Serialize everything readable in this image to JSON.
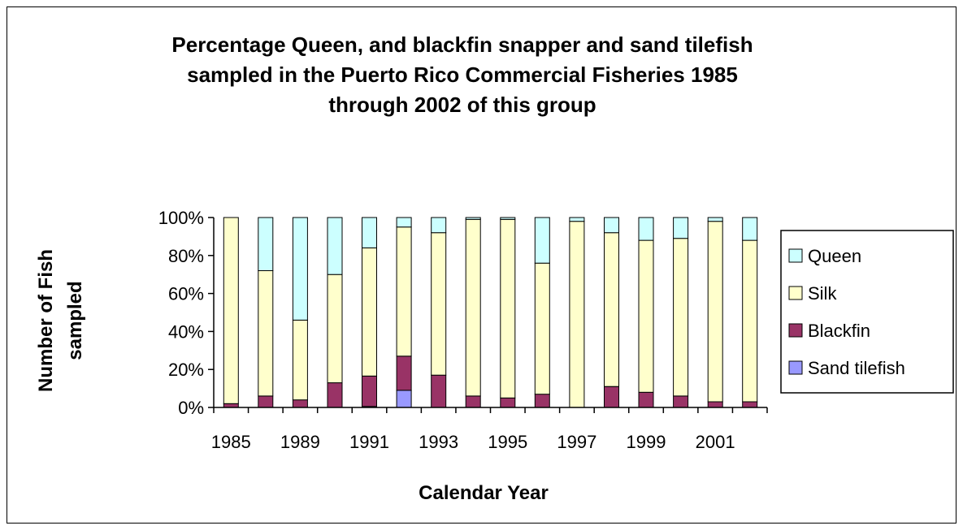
{
  "chart_data": {
    "type": "bar",
    "stacked": true,
    "title_lines": [
      "Percentage Queen, and blackfin snapper and sand tilefish",
      "sampled in the Puerto Rico Commercial Fisheries 1985",
      "through 2002 of this group"
    ],
    "xlabel": "Calendar Year",
    "ylabel_lines": [
      "Number of Fish",
      "sampled"
    ],
    "ylim": [
      0,
      100
    ],
    "yticks": [
      "0%",
      "20%",
      "40%",
      "60%",
      "80%",
      "100%"
    ],
    "ytick_values": [
      0,
      20,
      40,
      60,
      80,
      100
    ],
    "categories": [
      "1985",
      "1986",
      "1989",
      "1990",
      "1991",
      "1992",
      "1993",
      "1994",
      "1995",
      "1996",
      "1997",
      "1998",
      "1999",
      "2000",
      "2001",
      "2002"
    ],
    "xtick_labels": [
      "1985",
      "",
      "1989",
      "",
      "1991",
      "",
      "1993",
      "",
      "1995",
      "",
      "1997",
      "",
      "1999",
      "",
      "2001",
      ""
    ],
    "grid": false,
    "legend_position": "right",
    "series": [
      {
        "name": "Sand tilefish",
        "color": "#9999ff",
        "values": [
          0,
          0,
          0,
          0,
          0.5,
          9,
          0,
          0,
          0,
          0,
          0,
          0,
          0,
          0,
          0,
          0
        ]
      },
      {
        "name": "Blackfin",
        "color": "#993366",
        "values": [
          2,
          6,
          4,
          13,
          16,
          18,
          17,
          6,
          5,
          7,
          0,
          11,
          8,
          6,
          3,
          3
        ]
      },
      {
        "name": "Silk",
        "color": "#ffffcc",
        "values": [
          98,
          66,
          42,
          57,
          67.5,
          68,
          75,
          93,
          94,
          69,
          98,
          81,
          80,
          83,
          95,
          85
        ]
      },
      {
        "name": "Queen",
        "color": "#ccffff",
        "values": [
          0,
          28,
          54,
          30,
          16,
          5,
          8,
          1,
          1,
          24,
          2,
          8,
          12,
          11,
          2,
          12
        ]
      }
    ],
    "legend_order": [
      "Queen",
      "Silk",
      "Blackfin",
      "Sand tilefish"
    ]
  }
}
